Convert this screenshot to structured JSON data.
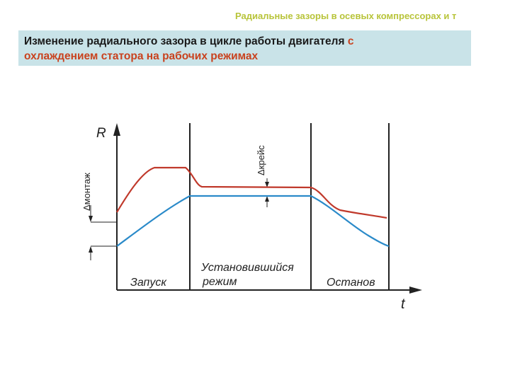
{
  "header": {
    "title": "Радиальные зазоры в осевых компрессорах и т"
  },
  "subtitle": {
    "part1": "Изменение радиального зазора в цикле работы двигателя ",
    "part2": "с",
    "part3": "охлаждением статора на рабочих режимах"
  },
  "diagram": {
    "axis_r": "R",
    "axis_t": "t",
    "delta_montazh": "Δмонтаж",
    "delta_kreis": "Δкрейс",
    "phases": {
      "start": "Запуск",
      "steady_line1": "Установившийся",
      "steady_line2": "режим",
      "stop": "Останов"
    },
    "colors": {
      "red_curve": "#c0392b",
      "blue_curve": "#2a8ac9",
      "axis": "#222222"
    }
  }
}
